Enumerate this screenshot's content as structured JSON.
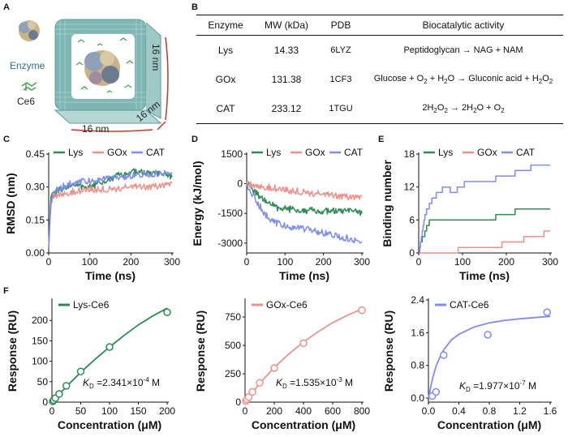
{
  "panels": {
    "A": "A",
    "B": "B",
    "C": "C",
    "D": "D",
    "E": "E",
    "F": "F"
  },
  "panelA": {
    "enzyme_label": "Enzyme",
    "ce6_label": "Ce6",
    "dim_x": "16 nm",
    "dim_y": "16 nm",
    "dim_z": "16 nm"
  },
  "table": {
    "headers": [
      "Enzyme",
      "MW (kDa)",
      "PDB",
      "Biocatalytic activity"
    ],
    "rows": [
      {
        "enzyme": "Lys",
        "mw": "14.33",
        "pdb": "6LYZ"
      },
      {
        "enzyme": "GOx",
        "mw": "131.38",
        "pdb": "1CF3"
      },
      {
        "enzyme": "CAT",
        "mw": "233.12",
        "pdb": "1TGU"
      }
    ],
    "activity": {
      "lys": "Peptidoglycan → NAG + NAM",
      "gox_1": "Glucose + O",
      "gox_2": "2",
      "gox_3": " + H",
      "gox_4": "2",
      "gox_5": "O → Gluconic acid + H",
      "gox_6": "2",
      "gox_7": "O",
      "gox_8": "2",
      "cat_1": "2H",
      "cat_2": "2",
      "cat_3": "O",
      "cat_4": "2",
      "cat_5": " → 2H",
      "cat_6": "2",
      "cat_7": "O + O",
      "cat_8": "2"
    }
  },
  "colors": {
    "lys": "#2e8b57",
    "gox": "#f0908a",
    "cat": "#7f8cf0",
    "box": "#7fb6b4"
  },
  "chart_data": [
    {
      "id": "C",
      "type": "line",
      "xlabel": "Time (ns)",
      "ylabel": "RMSD (nm)",
      "xlim": [
        0,
        300
      ],
      "ylim": [
        0,
        0.45
      ],
      "xticks": [
        0,
        100,
        200,
        300
      ],
      "yticks": [
        0.0,
        0.15,
        0.3,
        0.45
      ],
      "xticklabels": [
        "0",
        "100",
        "200",
        "300"
      ],
      "yticklabels": [
        "0.00",
        "0.15",
        "0.30",
        "0.45"
      ],
      "legend": [
        "Lys",
        "GOx",
        "CAT"
      ],
      "series": [
        {
          "name": "Lys",
          "x": [
            0,
            5,
            10,
            30,
            60,
            100,
            150,
            200,
            250,
            300
          ],
          "values": [
            0.02,
            0.24,
            0.27,
            0.29,
            0.31,
            0.3,
            0.34,
            0.37,
            0.36,
            0.35
          ]
        },
        {
          "name": "GOx",
          "x": [
            0,
            5,
            10,
            30,
            60,
            100,
            150,
            200,
            250,
            300
          ],
          "values": [
            0.02,
            0.22,
            0.26,
            0.27,
            0.28,
            0.29,
            0.29,
            0.3,
            0.3,
            0.31
          ]
        },
        {
          "name": "CAT",
          "x": [
            0,
            5,
            10,
            30,
            60,
            100,
            150,
            200,
            250,
            300
          ],
          "values": [
            0.02,
            0.23,
            0.27,
            0.3,
            0.32,
            0.33,
            0.34,
            0.35,
            0.36,
            0.37
          ]
        }
      ]
    },
    {
      "id": "D",
      "type": "line",
      "xlabel": "Time (ns)",
      "ylabel": "Energy (kJ/mol)",
      "xlim": [
        0,
        300
      ],
      "ylim": [
        -3500,
        1500
      ],
      "xticks": [
        0,
        100,
        200,
        300
      ],
      "yticks": [
        1500,
        0,
        -1500,
        -3000
      ],
      "xticklabels": [
        "0",
        "100",
        "200",
        "300"
      ],
      "yticklabels": [
        "1500",
        "0",
        "-1500",
        "-3000"
      ],
      "legend": [
        "Lys",
        "GOx",
        "CAT"
      ],
      "series": [
        {
          "name": "Lys",
          "x": [
            0,
            20,
            50,
            80,
            120,
            160,
            200,
            250,
            300
          ],
          "values": [
            0,
            -400,
            -900,
            -1200,
            -1300,
            -1350,
            -1400,
            -1400,
            -1450
          ]
        },
        {
          "name": "GOx",
          "x": [
            0,
            20,
            50,
            80,
            120,
            160,
            200,
            250,
            300
          ],
          "values": [
            0,
            -50,
            -150,
            -250,
            -350,
            -450,
            -550,
            -650,
            -750
          ]
        },
        {
          "name": "CAT",
          "x": [
            0,
            20,
            50,
            80,
            120,
            160,
            200,
            250,
            300
          ],
          "values": [
            0,
            -700,
            -1600,
            -2000,
            -2200,
            -2300,
            -2500,
            -2700,
            -2900
          ]
        }
      ]
    },
    {
      "id": "E",
      "type": "line",
      "xlabel": "Time (ns)",
      "ylabel": "Binding number",
      "xlim": [
        0,
        300
      ],
      "ylim": [
        0,
        18
      ],
      "xticks": [
        0,
        100,
        200,
        300
      ],
      "yticks": [
        0,
        6,
        12,
        18
      ],
      "xticklabels": [
        "0",
        "100",
        "200",
        "300"
      ],
      "yticklabels": [
        "0",
        "6",
        "12",
        "18"
      ],
      "legend": [
        "Lys",
        "GOx",
        "CAT"
      ],
      "series": [
        {
          "name": "Lys",
          "x": [
            0,
            5,
            15,
            25,
            40,
            80,
            150,
            200,
            240,
            300
          ],
          "values": [
            0,
            2,
            4,
            6,
            6,
            6,
            6,
            7,
            8,
            8
          ]
        },
        {
          "name": "GOx",
          "x": [
            0,
            40,
            80,
            100,
            180,
            200,
            280,
            290,
            300
          ],
          "values": [
            0,
            0,
            0,
            1,
            1,
            2,
            3,
            4,
            4
          ]
        },
        {
          "name": "CAT",
          "x": [
            0,
            5,
            15,
            25,
            45,
            60,
            80,
            110,
            150,
            200,
            240,
            270,
            300
          ],
          "values": [
            0,
            3,
            7,
            9,
            11,
            12,
            11,
            13,
            13,
            14,
            15,
            16,
            16
          ]
        }
      ]
    },
    {
      "id": "F1",
      "type": "scatter",
      "xlabel": "Concentration (μM)",
      "ylabel": "Response (RU)",
      "xlim": [
        0,
        200
      ],
      "ylim": [
        0,
        250
      ],
      "xticks": [
        0,
        50,
        100,
        150,
        200
      ],
      "yticks": [
        0,
        50,
        100,
        150,
        200
      ],
      "xticklabels": [
        "0",
        "50",
        "100",
        "150",
        "200"
      ],
      "yticklabels": [
        "0",
        "50",
        "100",
        "150",
        "200"
      ],
      "legend": [
        "Lys-Ce6"
      ],
      "kd_base": "=2.341×10",
      "kd_exp": "-4",
      "kd_unit": " M",
      "x": [
        1.5,
        3,
        6,
        12.5,
        25,
        50,
        100,
        200
      ],
      "values": [
        2,
        5,
        10,
        20,
        40,
        75,
        135,
        220
      ],
      "fit_x": [
        0,
        25,
        50,
        75,
        100,
        125,
        150,
        175,
        200
      ],
      "fit_values": [
        0,
        38,
        73,
        105,
        135,
        163,
        189,
        211,
        230
      ]
    },
    {
      "id": "F2",
      "type": "scatter",
      "xlabel": "Concentration (μM)",
      "ylabel": "Response (RU)",
      "xlim": [
        0,
        800
      ],
      "ylim": [
        0,
        900
      ],
      "xticks": [
        0,
        200,
        400,
        600,
        800
      ],
      "yticks": [
        0,
        250,
        500,
        750
      ],
      "xticklabels": [
        "0",
        "200",
        "400",
        "600",
        "800"
      ],
      "yticklabels": [
        "0",
        "250",
        "500",
        "750"
      ],
      "legend": [
        "GOx-Ce6"
      ],
      "kd_base": "=1.535×10",
      "kd_exp": "-3",
      "kd_unit": " M",
      "x": [
        6,
        12.5,
        25,
        50,
        100,
        200,
        400,
        800
      ],
      "values": [
        10,
        25,
        45,
        90,
        170,
        300,
        520,
        810
      ],
      "fit_x": [
        0,
        100,
        200,
        300,
        400,
        500,
        600,
        700,
        800
      ],
      "fit_values": [
        0,
        165,
        305,
        425,
        530,
        620,
        700,
        765,
        820
      ]
    },
    {
      "id": "F3",
      "type": "scatter",
      "xlabel": "Concentration (μM)",
      "ylabel": "Response (RU)",
      "xlim": [
        0,
        1.6
      ],
      "ylim": [
        -0.1,
        2.4
      ],
      "xticks": [
        0,
        0.4,
        0.8,
        1.2,
        1.6
      ],
      "yticks": [
        0.0,
        0.8,
        1.6,
        2.4
      ],
      "xticklabels": [
        "0.0",
        "0.4",
        "0.8",
        "1.2",
        "1.6"
      ],
      "yticklabels": [
        "0.0",
        "0.8",
        "1.6",
        "2.4"
      ],
      "legend": [
        "CAT-Ce6"
      ],
      "kd_base": "=1.977×10",
      "kd_exp": "-7",
      "kd_unit": " M",
      "x": [
        0.05,
        0.1,
        0.2,
        0.78,
        1.56
      ],
      "values": [
        0.05,
        0.15,
        1.05,
        1.55,
        2.1
      ],
      "fit_x": [
        0,
        0.05,
        0.1,
        0.15,
        0.2,
        0.3,
        0.4,
        0.6,
        0.8,
        1.0,
        1.2,
        1.4,
        1.6
      ],
      "fit_values": [
        0,
        0.45,
        0.78,
        1.0,
        1.18,
        1.42,
        1.56,
        1.74,
        1.84,
        1.9,
        1.94,
        1.97,
        2.0
      ]
    }
  ]
}
